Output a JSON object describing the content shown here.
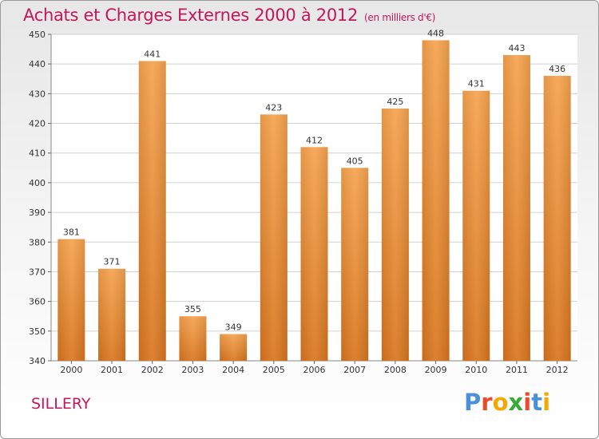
{
  "header": {
    "title": "Achats et Charges Externes 2000 à 2012",
    "unit": "(en milliers d'€)"
  },
  "footer": {
    "commune": "SILLERY",
    "logo": [
      "P",
      "r",
      "o",
      "x",
      "i",
      "t",
      "i"
    ]
  },
  "colors": {
    "bar_top": "#f6a34e",
    "bar_bottom": "#d9761f",
    "title": "#c2185b",
    "grid": "#d0d0d0",
    "logo": [
      "#4a90d9",
      "#e94b2e",
      "#f2a900",
      "#3aaa35",
      "#e94b2e",
      "#4a90d9",
      "#f2a900"
    ]
  },
  "chart_data": {
    "type": "bar",
    "title": "Achats et Charges Externes 2000 à 2012",
    "subtitle": "(en milliers d'€)",
    "xlabel": "",
    "ylabel": "",
    "categories": [
      "2000",
      "2001",
      "2002",
      "2003",
      "2004",
      "2005",
      "2006",
      "2007",
      "2008",
      "2009",
      "2010",
      "2011",
      "2012"
    ],
    "values": [
      381,
      371,
      441,
      355,
      349,
      423,
      412,
      405,
      425,
      448,
      431,
      443,
      436
    ],
    "ylim": [
      340,
      450
    ],
    "yticks": [
      340,
      350,
      360,
      370,
      380,
      390,
      400,
      410,
      420,
      430,
      440,
      450
    ],
    "grid": true,
    "data_labels": true
  }
}
